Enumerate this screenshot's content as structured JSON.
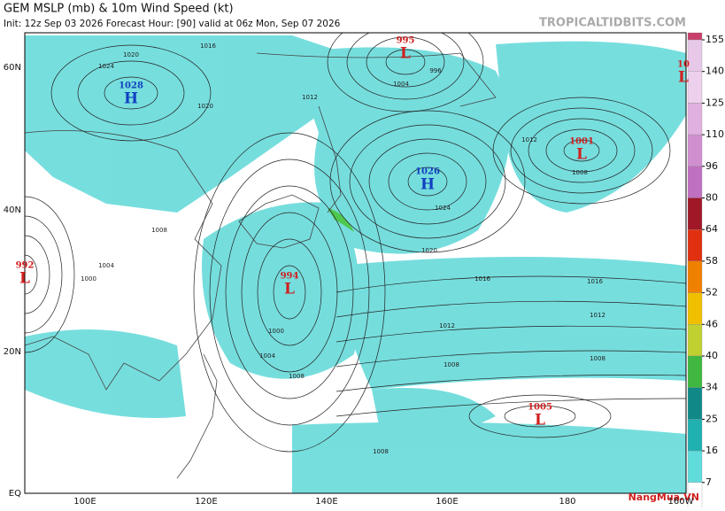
{
  "header": {
    "title": "GEM MSLP (mb) & 10m Wind Speed (kt)",
    "subtitle": "Init: 12z Sep 03 2026   Forecast Hour: [90]   valid at 06z Mon, Sep 07 2026",
    "source": "TROPICALTIDBITS.COM"
  },
  "axes": {
    "lat_labels": [
      "60N",
      "40N",
      "20N",
      "EQ"
    ],
    "lon_labels": [
      "100E",
      "120E",
      "140E",
      "160E",
      "180",
      "160W"
    ]
  },
  "centers": [
    {
      "pressure": "1028",
      "letter": "H",
      "color": "#1040c0"
    },
    {
      "pressure": "995",
      "letter": "L",
      "color": "#d02020"
    },
    {
      "pressure": "1026",
      "letter": "H",
      "color": "#1040c0"
    },
    {
      "pressure": "994",
      "letter": "L",
      "color": "#d02020"
    },
    {
      "pressure": "1001",
      "letter": "L",
      "color": "#d02020"
    },
    {
      "pressure": "1005",
      "letter": "L",
      "color": "#d02020"
    },
    {
      "pressure": "992",
      "letter": "L",
      "color": "#d02020"
    },
    {
      "pressure": "10",
      "letter": "L",
      "color": "#d02020"
    }
  ],
  "isobar_labels": [
    "1016",
    "1020",
    "1024",
    "1020",
    "1012",
    "1008",
    "1004",
    "1000",
    "1024",
    "1020",
    "1016",
    "1012",
    "1008",
    "1004",
    "1000",
    "1008",
    "1012",
    "1016",
    "1008",
    "1008",
    "1012",
    "1008",
    "1004",
    "996"
  ],
  "colorbar": {
    "ticks": [
      155,
      140,
      125,
      110,
      96,
      80,
      64,
      58,
      52,
      46,
      40,
      34,
      25,
      16,
      7
    ],
    "colors": [
      "#c8406a",
      "#e8c8e8",
      "#ecd0ec",
      "#e0b0e0",
      "#d090d0",
      "#c070c0",
      "#a01828",
      "#e03010",
      "#f08000",
      "#f0c000",
      "#c0d030",
      "#40b840",
      "#108888",
      "#20b0b0",
      "#60dcdc",
      "#ffffff"
    ]
  },
  "watermark": "NangMua.VN"
}
